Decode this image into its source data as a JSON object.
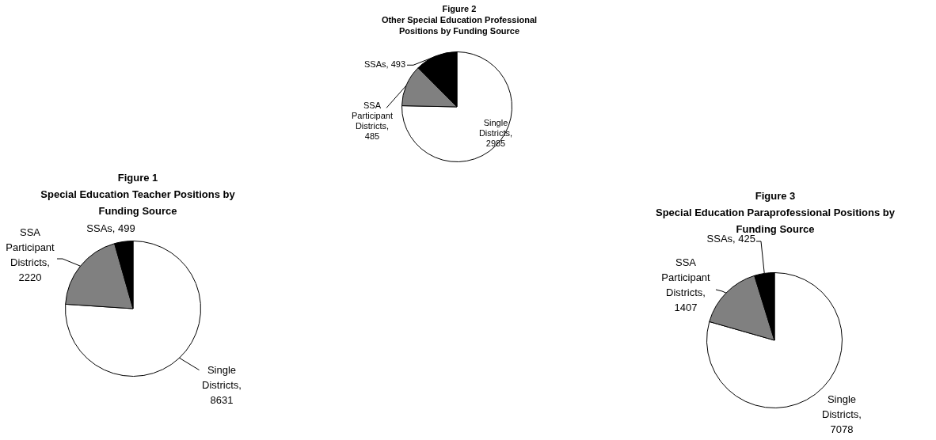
{
  "chart_data": [
    {
      "type": "pie",
      "title": "Figure 1",
      "subtitle": "Special Education Teacher Positions by Funding Source",
      "categories": [
        "Single Districts",
        "SSA Participant Districts",
        "SSAs"
      ],
      "values": [
        8631,
        2220,
        499
      ],
      "value_labels": [
        ", 8631",
        ", 2220",
        ", 499"
      ],
      "colors": [
        "#ffffff",
        "#808080",
        "#000000"
      ],
      "legend": false
    },
    {
      "type": "pie",
      "title": "Figure 2",
      "subtitle": "Other Special Education Professional Positions by Funding Source",
      "categories": [
        "Single Districts",
        "SSA Participant Districts",
        "SSAs"
      ],
      "values": [
        2985,
        485,
        493
      ],
      "value_labels": [
        ", 2985",
        ", 485",
        ", 493"
      ],
      "colors": [
        "#ffffff",
        "#808080",
        "#000000"
      ],
      "legend": false
    },
    {
      "type": "pie",
      "title": "Figure 3",
      "subtitle": "Special Education Paraprofessional Positions by Funding Source",
      "categories": [
        "Single Districts",
        "SSA Participant Districts",
        "SSAs"
      ],
      "values": [
        7078,
        1407,
        425
      ],
      "value_labels": [
        ", 7078",
        ", 1407",
        ", 425"
      ],
      "colors": [
        "#ffffff",
        "#808080",
        "#000000"
      ],
      "legend": false
    }
  ]
}
